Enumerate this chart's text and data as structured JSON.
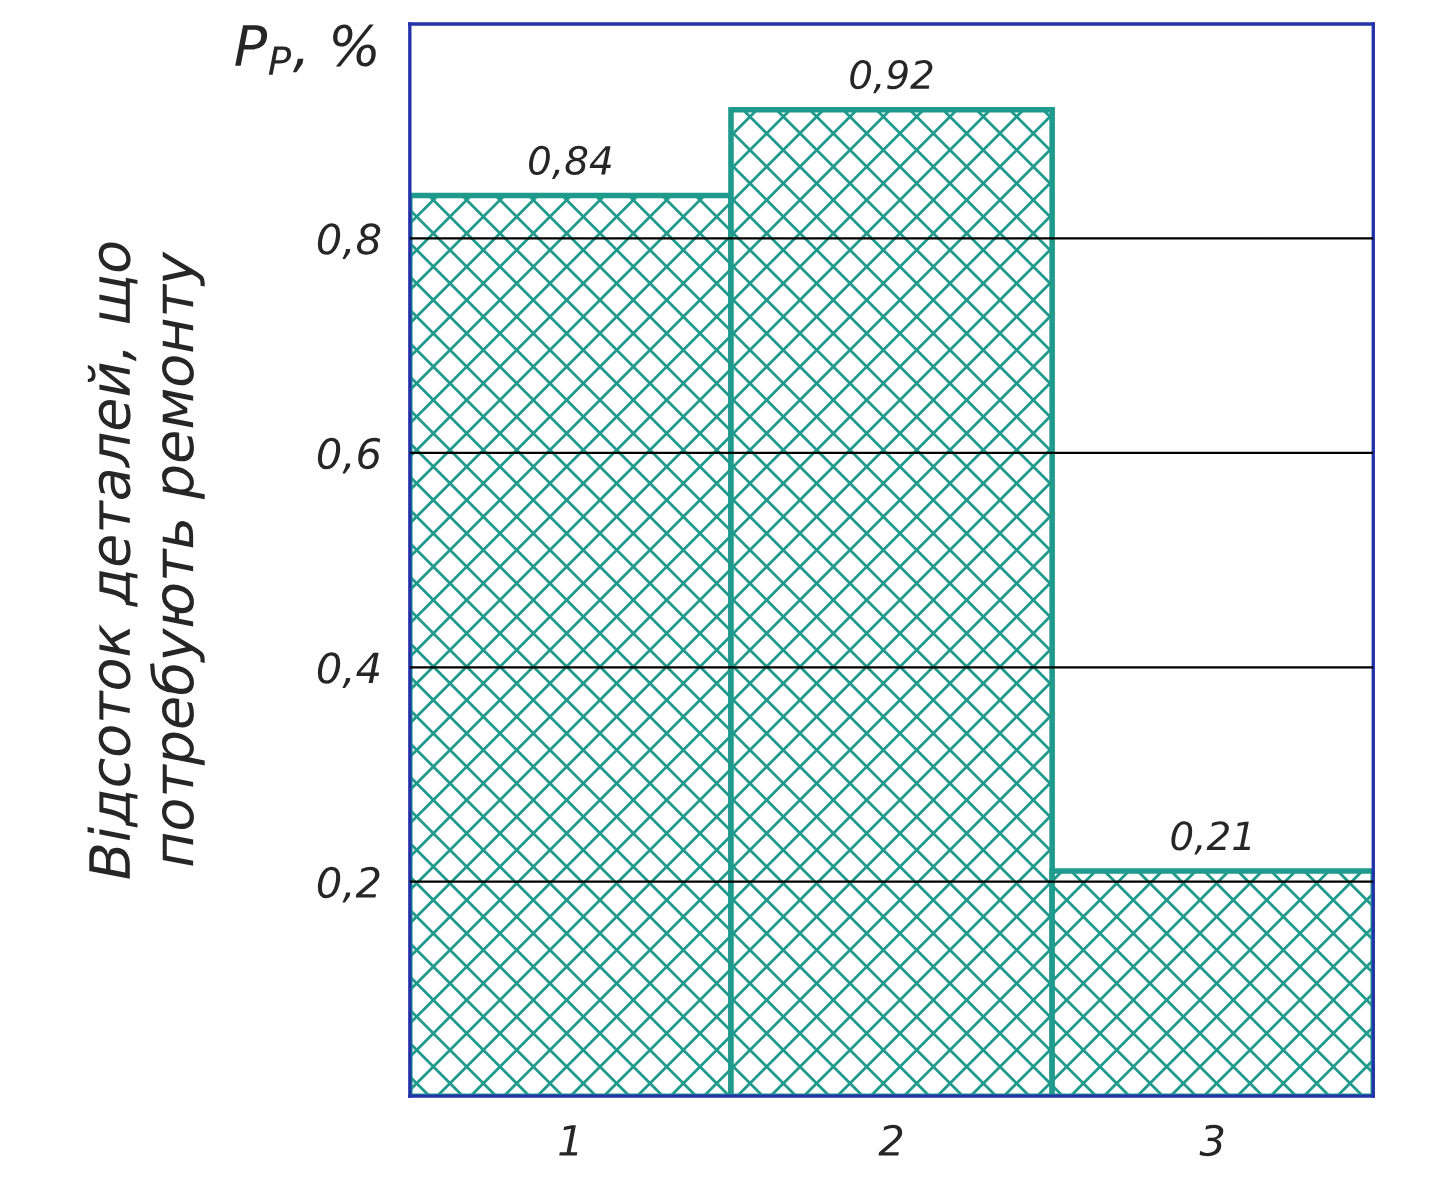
{
  "chart_data": {
    "type": "bar",
    "ylabel": "Відсоток деталей, що\nпотребують ремонту",
    "annotations": [
      "P$_{P}$, %"
    ],
    "categories": [
      "1",
      "2",
      "3"
    ],
    "values": [
      0.84,
      0.92,
      0.21
    ],
    "value_labels": [
      "0,84",
      "0,92",
      "0,21"
    ],
    "color": "#1f9a8c",
    "ylim": [
      0,
      1.0
    ],
    "yticks": [
      {
        "value": 0.2,
        "label": "0,2"
      },
      {
        "value": 0.4,
        "label": "0,4"
      },
      {
        "value": 0.6,
        "label": "0,6"
      },
      {
        "value": 0.8,
        "label": "0,8"
      }
    ],
    "grid": "y",
    "legend": false
  }
}
